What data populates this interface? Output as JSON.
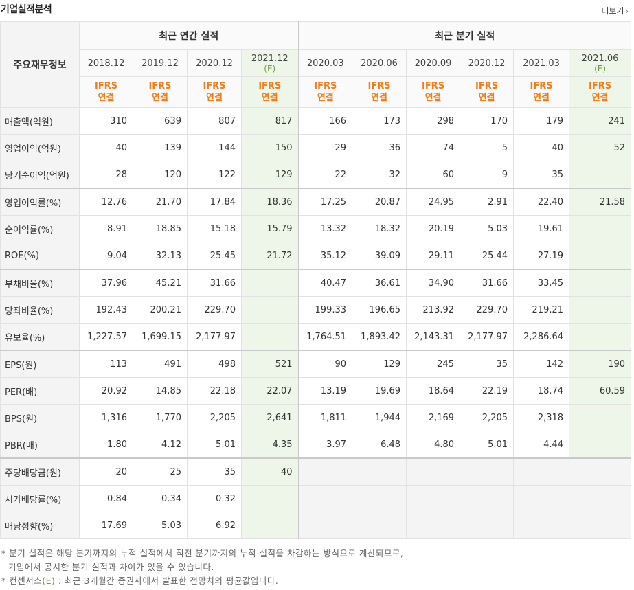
{
  "header": {
    "title": "기업실적분석",
    "more_label": "더보기",
    "more_icon": "chevron-right"
  },
  "table": {
    "corner": "주요재무정보",
    "group_annual": "최근 연간 실적",
    "group_quarter": "최근 분기 실적",
    "periods": [
      "2018.12",
      "2019.12",
      "2020.12",
      "2021.12",
      "2020.03",
      "2020.06",
      "2020.09",
      "2020.12",
      "2021.03",
      "2021.06"
    ],
    "estimate_mark": "(E)",
    "ifrs_label": "IFRS",
    "consol_label": "연결",
    "rows": [
      {
        "label": "매출액(억원)",
        "values": [
          "310",
          "639",
          "807",
          "817",
          "166",
          "173",
          "298",
          "170",
          "179",
          "241"
        ]
      },
      {
        "label": "영업이익(억원)",
        "values": [
          "40",
          "139",
          "144",
          "150",
          "29",
          "36",
          "74",
          "5",
          "40",
          "52"
        ]
      },
      {
        "label": "당기순이익(억원)",
        "values": [
          "28",
          "120",
          "122",
          "129",
          "22",
          "32",
          "60",
          "9",
          "35",
          ""
        ]
      },
      {
        "label": "영업이익률(%)",
        "values": [
          "12.76",
          "21.70",
          "17.84",
          "18.36",
          "17.25",
          "20.87",
          "24.95",
          "2.91",
          "22.40",
          "21.58"
        ]
      },
      {
        "label": "순이익률(%)",
        "values": [
          "8.91",
          "18.85",
          "15.18",
          "15.79",
          "13.32",
          "18.32",
          "20.19",
          "5.03",
          "19.61",
          ""
        ]
      },
      {
        "label": "ROE(%)",
        "values": [
          "9.04",
          "32.13",
          "25.45",
          "21.72",
          "35.12",
          "39.09",
          "29.11",
          "25.44",
          "27.19",
          ""
        ]
      },
      {
        "label": "부채비율(%)",
        "values": [
          "37.96",
          "45.21",
          "31.66",
          "",
          "40.47",
          "36.61",
          "34.90",
          "31.66",
          "33.45",
          ""
        ]
      },
      {
        "label": "당좌비율(%)",
        "values": [
          "192.43",
          "200.21",
          "229.70",
          "",
          "199.33",
          "196.65",
          "213.92",
          "229.70",
          "219.21",
          ""
        ]
      },
      {
        "label": "유보율(%)",
        "values": [
          "1,227.57",
          "1,699.15",
          "2,177.97",
          "",
          "1,764.51",
          "1,893.42",
          "2,143.31",
          "2,177.97",
          "2,286.64",
          ""
        ]
      },
      {
        "label": "EPS(원)",
        "values": [
          "113",
          "491",
          "498",
          "521",
          "90",
          "129",
          "245",
          "35",
          "142",
          "190"
        ]
      },
      {
        "label": "PER(배)",
        "values": [
          "20.92",
          "14.85",
          "22.18",
          "22.07",
          "13.19",
          "19.69",
          "18.64",
          "22.19",
          "18.74",
          "60.59"
        ]
      },
      {
        "label": "BPS(원)",
        "values": [
          "1,316",
          "1,770",
          "2,205",
          "2,641",
          "1,811",
          "1,944",
          "2,169",
          "2,205",
          "2,318",
          ""
        ]
      },
      {
        "label": "PBR(배)",
        "values": [
          "1.80",
          "4.12",
          "5.01",
          "4.35",
          "3.97",
          "6.48",
          "4.80",
          "5.01",
          "4.44",
          ""
        ]
      },
      {
        "label": "주당배당금(원)",
        "values": [
          "20",
          "25",
          "35",
          "40",
          "",
          "",
          "",
          "",
          "",
          ""
        ]
      },
      {
        "label": "시가배당률(%)",
        "values": [
          "0.84",
          "0.34",
          "0.32",
          "",
          "",
          "",
          "",
          "",
          "",
          ""
        ]
      },
      {
        "label": "배당성향(%)",
        "values": [
          "17.69",
          "5.03",
          "6.92",
          "",
          "",
          "",
          "",
          "",
          "",
          ""
        ]
      }
    ]
  },
  "notes": {
    "line1": "분기 실적은 해당 분기까지의 누적 실적에서 직전 분기까지의 누적 실적을 차감하는 방식으로 계산되므로,",
    "line2": "기업에서 공시한 분기 실적과 차이가 있을 수 있습니다.",
    "line3_prefix": "컨센서스",
    "line3_mark": "(E)",
    "line3_rest": " : 최근 3개월간 증권사에서 발표한 전망치의 평균값입니다."
  }
}
